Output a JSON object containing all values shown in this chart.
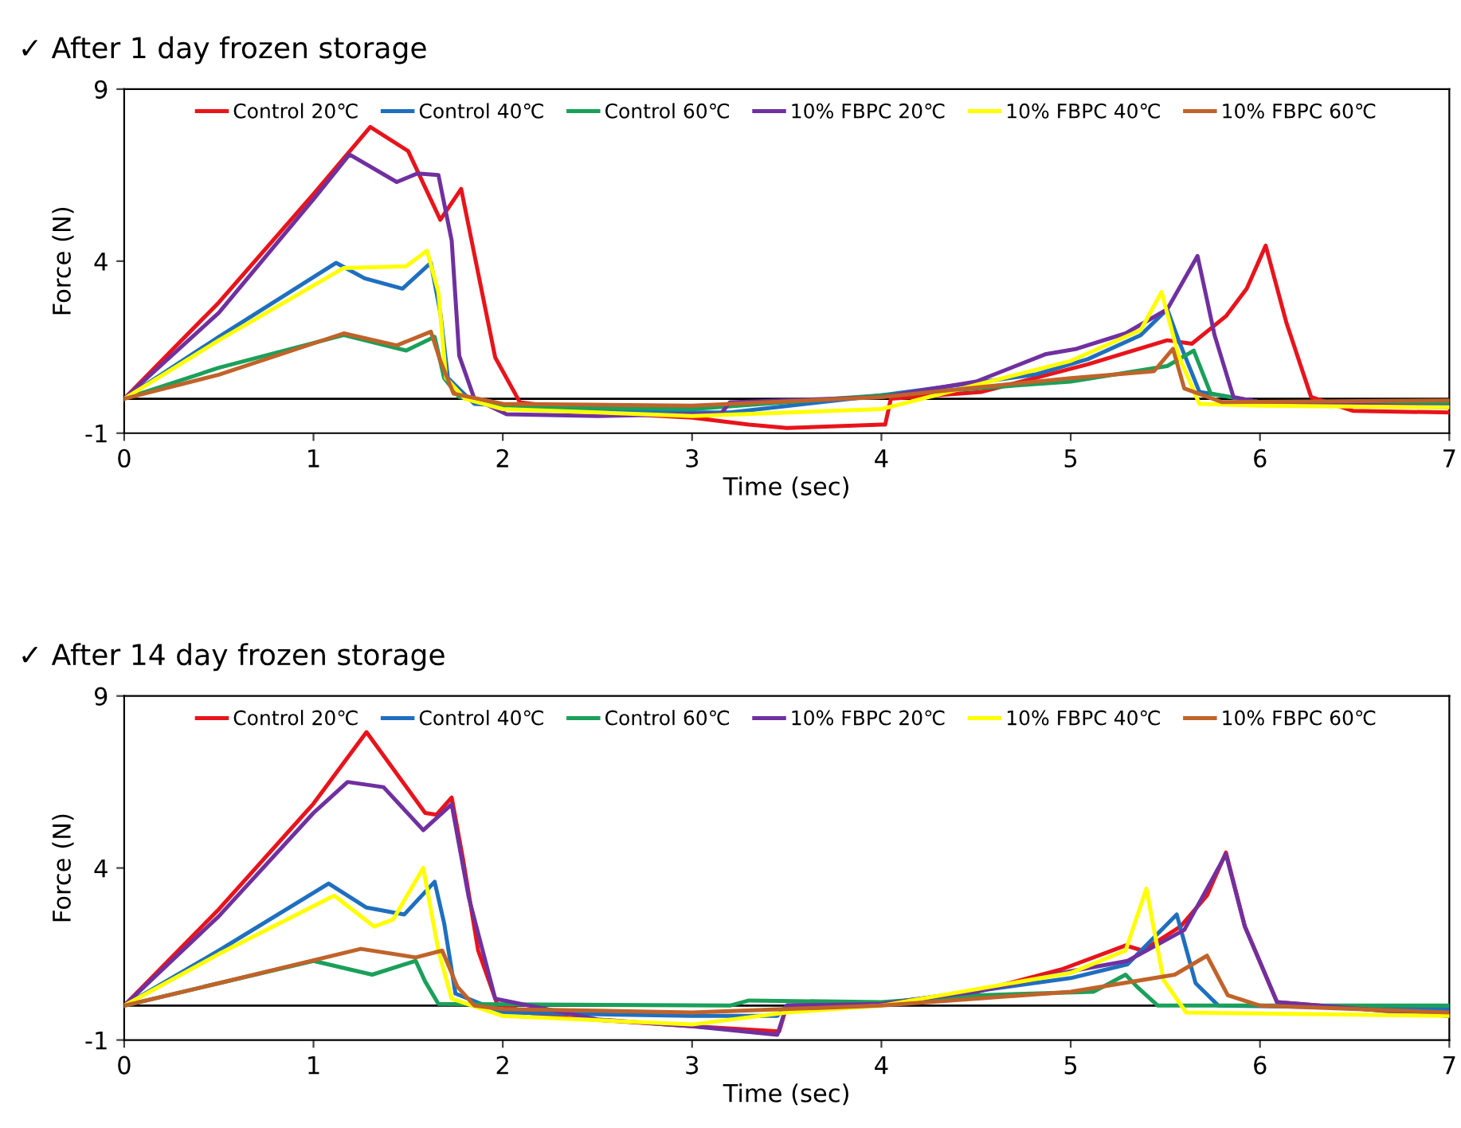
{
  "chart_data": [
    {
      "type": "line",
      "title": "✓ After 1 day frozen storage",
      "xlabel": "Time (sec)",
      "ylabel": "Force (N)",
      "xlim": [
        0,
        7
      ],
      "ylim": [
        -1,
        9
      ],
      "xticks": [
        0,
        1,
        2,
        3,
        4,
        5,
        6,
        7
      ],
      "yticks": [
        -1,
        4,
        9
      ],
      "grid": false,
      "legend": "top",
      "marker": "none",
      "line_style": "solid",
      "ref_lines": [
        {
          "axis": "y",
          "value": 0,
          "color": "#000000"
        }
      ],
      "series": [
        {
          "name": "Control 20℃",
          "color": "#e8141b",
          "x": [
            0,
            0.5,
            1.0,
            1.3,
            1.5,
            1.67,
            1.78,
            1.96,
            2.09,
            2.5,
            3.0,
            3.3,
            3.5,
            4.0,
            4.02,
            4.05,
            4.53,
            5.09,
            5.51,
            5.64,
            5.82,
            5.93,
            6.03,
            6.14,
            6.27,
            6.49,
            7.0
          ],
          "values": [
            0,
            2.8,
            5.95,
            7.9,
            7.2,
            5.2,
            6.1,
            1.2,
            -0.1,
            -0.4,
            -0.55,
            -0.75,
            -0.85,
            -0.75,
            -0.75,
            0,
            0.2,
            1.0,
            1.7,
            1.6,
            2.4,
            3.2,
            4.45,
            2.2,
            0.05,
            -0.35,
            -0.4
          ]
        },
        {
          "name": "Control 40℃",
          "color": "#1f6fbf",
          "x": [
            0,
            0.5,
            1.12,
            1.27,
            1.47,
            1.62,
            1.67,
            1.71,
            1.85,
            2.5,
            3.0,
            3.2,
            4.0,
            4.81,
            5.09,
            5.37,
            5.51,
            5.57,
            5.68,
            6.0,
            7.0
          ],
          "values": [
            0,
            1.8,
            3.95,
            3.5,
            3.2,
            3.95,
            2.5,
            0.6,
            -0.15,
            -0.35,
            -0.4,
            -0.4,
            0.1,
            0.7,
            1.15,
            1.85,
            2.6,
            1.7,
            0.2,
            -0.1,
            -0.2
          ]
        },
        {
          "name": "Control 60℃",
          "color": "#1aa05a",
          "x": [
            0,
            0.5,
            1.16,
            1.49,
            1.64,
            1.69,
            1.77,
            2.0,
            3.0,
            4.0,
            5.0,
            5.51,
            5.65,
            5.74,
            6.0,
            7.0
          ],
          "values": [
            0,
            0.9,
            1.85,
            1.4,
            1.8,
            0.6,
            0.05,
            -0.25,
            -0.3,
            0.1,
            0.5,
            0.95,
            1.4,
            0.15,
            -0.1,
            -0.1
          ]
        },
        {
          "name": "10% FBPC 20℃",
          "color": "#7030a0",
          "x": [
            0,
            0.5,
            1.0,
            1.19,
            1.44,
            1.55,
            1.66,
            1.73,
            1.77,
            1.85,
            2.02,
            2.5,
            3.0,
            3.15,
            3.2,
            4.0,
            4.5,
            4.87,
            5.03,
            5.29,
            5.51,
            5.67,
            5.76,
            5.86,
            6.0,
            7.0
          ],
          "values": [
            0,
            2.5,
            5.8,
            7.1,
            6.3,
            6.55,
            6.5,
            4.6,
            1.25,
            0,
            -0.45,
            -0.5,
            -0.45,
            -0.45,
            -0.1,
            0.05,
            0.5,
            1.3,
            1.45,
            1.9,
            2.6,
            4.15,
            1.85,
            0.05,
            -0.1,
            -0.25
          ]
        },
        {
          "name": "10% FBPC 40℃",
          "color": "#ffff00",
          "x": [
            0,
            0.5,
            1.16,
            1.49,
            1.6,
            1.66,
            1.7,
            1.8,
            2.0,
            3.0,
            4.0,
            4.5,
            5.0,
            5.37,
            5.48,
            5.57,
            5.68,
            6.0,
            7.0
          ],
          "values": [
            0,
            1.7,
            3.8,
            3.85,
            4.3,
            3.1,
            0.6,
            0,
            -0.3,
            -0.5,
            -0.3,
            0.4,
            1.1,
            2.0,
            3.1,
            1.25,
            -0.15,
            -0.2,
            -0.25
          ]
        },
        {
          "name": "10% FBPC 60℃",
          "color": "#c0632a",
          "x": [
            0,
            0.5,
            1.16,
            1.44,
            1.62,
            1.67,
            1.74,
            2.0,
            3.0,
            4.0,
            5.0,
            5.44,
            5.54,
            5.6,
            5.8,
            7.0
          ],
          "values": [
            0,
            0.7,
            1.9,
            1.55,
            1.95,
            1.1,
            0.15,
            -0.15,
            -0.2,
            0.05,
            0.6,
            0.8,
            1.45,
            0.3,
            -0.1,
            -0.05
          ]
        }
      ]
    },
    {
      "type": "line",
      "title": "✓ After 14 day frozen storage",
      "xlabel": "Time (sec)",
      "ylabel": "Force (N)",
      "xlim": [
        0,
        7
      ],
      "ylim": [
        -1,
        9
      ],
      "xticks": [
        0,
        1,
        2,
        3,
        4,
        5,
        6,
        7
      ],
      "yticks": [
        -1,
        4,
        9
      ],
      "grid": false,
      "legend": "top",
      "marker": "none",
      "line_style": "solid",
      "ref_lines": [
        {
          "axis": "y",
          "value": 0,
          "color": "#000000"
        }
      ],
      "series": [
        {
          "name": "Control 20℃",
          "color": "#e8141b",
          "x": [
            0,
            0.5,
            1.0,
            1.28,
            1.59,
            1.65,
            1.73,
            1.79,
            1.87,
            1.97,
            2.2,
            3.0,
            3.3,
            3.46,
            3.5,
            4.0,
            4.5,
            4.95,
            5.29,
            5.38,
            5.58,
            5.72,
            5.82,
            5.92,
            6.09,
            7.0
          ],
          "values": [
            0,
            2.8,
            5.87,
            7.95,
            5.6,
            5.55,
            6.05,
            4.25,
            1.6,
            0.05,
            -0.3,
            -0.6,
            -0.7,
            -0.75,
            0,
            0.05,
            0.4,
            1.05,
            1.75,
            1.6,
            2.3,
            3.2,
            4.45,
            2.3,
            0.1,
            -0.3
          ]
        },
        {
          "name": "Control 40℃",
          "color": "#1f6fbf",
          "x": [
            0,
            0.5,
            1.08,
            1.28,
            1.48,
            1.64,
            1.69,
            1.75,
            2.0,
            3.0,
            3.45,
            3.5,
            4.0,
            5.0,
            5.3,
            5.56,
            5.66,
            5.78,
            7.0
          ],
          "values": [
            0,
            1.6,
            3.55,
            2.85,
            2.65,
            3.6,
            2.4,
            0.35,
            -0.2,
            -0.3,
            -0.3,
            0,
            0.05,
            0.8,
            1.2,
            2.65,
            0.65,
            0,
            -0.1
          ]
        },
        {
          "name": "Control 60℃",
          "color": "#1aa05a",
          "x": [
            0,
            1.0,
            1.31,
            1.54,
            1.59,
            1.66,
            3.2,
            3.3,
            4.0,
            4.5,
            5.12,
            5.29,
            5.35,
            5.46,
            7.0
          ],
          "values": [
            0,
            1.3,
            0.9,
            1.3,
            0.7,
            0.05,
            0,
            0.15,
            0.1,
            0.3,
            0.4,
            0.9,
            0.55,
            0,
            0
          ]
        },
        {
          "name": "10% FBPC 20℃",
          "color": "#7030a0",
          "x": [
            0,
            0.5,
            1.0,
            1.18,
            1.37,
            1.58,
            1.73,
            1.82,
            1.96,
            2.5,
            3.0,
            3.45,
            3.5,
            4.0,
            4.5,
            5.0,
            5.3,
            5.6,
            5.82,
            5.92,
            6.09,
            7.0
          ],
          "values": [
            0,
            2.6,
            5.6,
            6.5,
            6.35,
            5.1,
            5.85,
            3.15,
            0.2,
            -0.4,
            -0.6,
            -0.85,
            0,
            0.05,
            0.4,
            1.0,
            1.3,
            2.2,
            4.4,
            2.3,
            0.1,
            -0.3
          ]
        },
        {
          "name": "10% FBPC 40℃",
          "color": "#ffff00",
          "x": [
            0,
            0.5,
            1.11,
            1.32,
            1.42,
            1.58,
            1.66,
            1.73,
            2.0,
            3.0,
            3.5,
            4.0,
            5.0,
            5.29,
            5.4,
            5.49,
            5.61,
            7.0
          ],
          "values": [
            0,
            1.5,
            3.2,
            2.3,
            2.5,
            4.0,
            1.6,
            0.2,
            -0.3,
            -0.55,
            -0.2,
            0,
            0.95,
            1.6,
            3.4,
            0.75,
            -0.2,
            -0.3
          ]
        },
        {
          "name": "10% FBPC 60℃",
          "color": "#c0632a",
          "x": [
            0,
            0.5,
            1.25,
            1.54,
            1.68,
            1.76,
            1.85,
            2.0,
            3.0,
            4.0,
            5.0,
            5.55,
            5.72,
            5.83,
            6.0,
            7.0
          ],
          "values": [
            0,
            0.65,
            1.65,
            1.4,
            1.6,
            0.55,
            0,
            -0.1,
            -0.2,
            0,
            0.4,
            0.9,
            1.45,
            0.3,
            0,
            -0.2
          ]
        }
      ]
    }
  ]
}
